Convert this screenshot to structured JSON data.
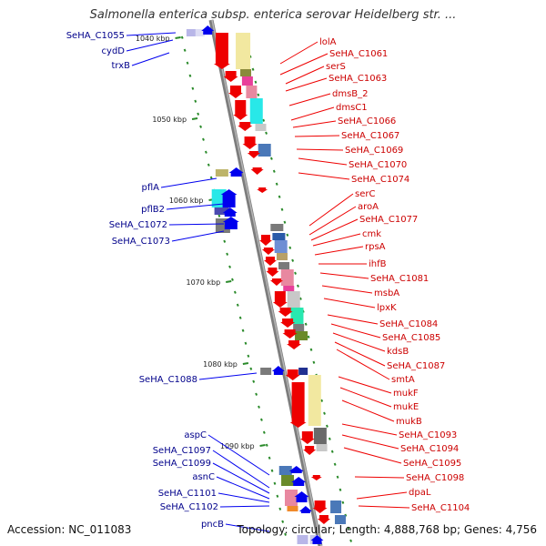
{
  "title": "Salmonella enterica subsp. enterica serovar Heidelberg str. ...",
  "footer": {
    "accession": "Accession: NC_011083",
    "summary": "Topology: circular; Length: 4,888,768 bp; Genes: 4,756"
  },
  "kbp_labels": [
    {
      "text": "1040 kbp",
      "kbp": 1040
    },
    {
      "text": "1050 kbp",
      "kbp": 1050
    },
    {
      "text": "1060 kbp",
      "kbp": 1060
    },
    {
      "text": "1070 kbp",
      "kbp": 1070
    },
    {
      "text": "1080 kbp",
      "kbp": 1080
    },
    {
      "text": "1090 kbp",
      "kbp": 1090
    }
  ],
  "left_genes": [
    "SeHA_C1055",
    "cydD",
    "trxB",
    "pflA",
    "pflB2",
    "SeHA_C1072",
    "SeHA_C1073",
    "SeHA_C1088",
    "aspC",
    "SeHA_C1097",
    "SeHA_C1099",
    "asnC",
    "SeHA_C1101",
    "SeHA_C1102",
    "pncB"
  ],
  "right_genes": [
    "lolA",
    "SeHA_C1061",
    "serS",
    "SeHA_C1063",
    "dmsB_2",
    "dmsC1",
    "SeHA_C1066",
    "SeHA_C1067",
    "SeHA_C1069",
    "SeHA_C1070",
    "SeHA_C1074",
    "serC",
    "aroA",
    "SeHA_C1077",
    "cmk",
    "rpsA",
    "ihfB",
    "SeHA_C1081",
    "msbA",
    "lpxK",
    "SeHA_C1084",
    "SeHA_C1085",
    "kdsB",
    "SeHA_C1087",
    "smtA",
    "mukF",
    "mukE",
    "mukB",
    "SeHA_C1093",
    "SeHA_C1094",
    "SeHA_C1095",
    "SeHA_C1098",
    "dpaL",
    "SeHA_C1104"
  ],
  "colors": {
    "forward": "#0000ee",
    "reverse": "#ee0000",
    "backbone": "#8a8a8a",
    "tick": "#2a8a2a",
    "label_left": "#00008b",
    "label_right": "#cc0000"
  }
}
